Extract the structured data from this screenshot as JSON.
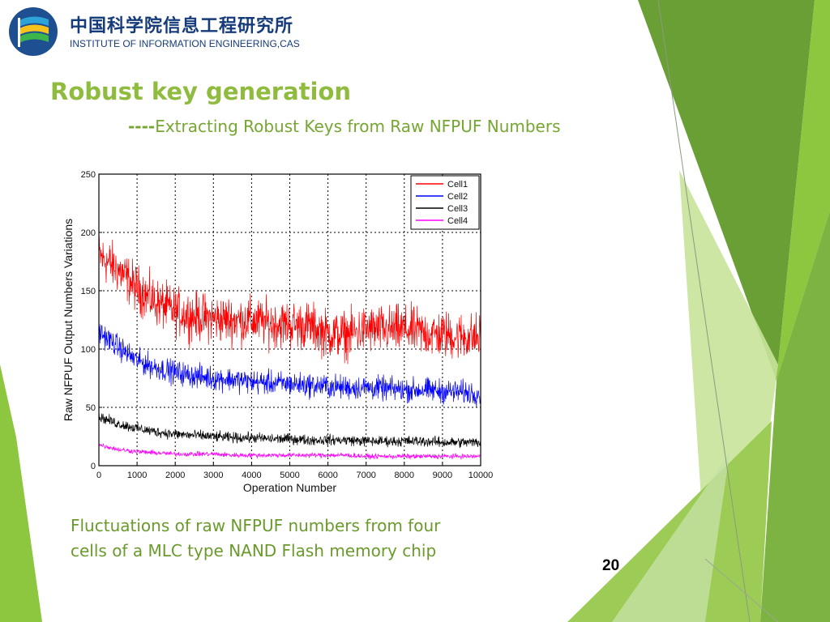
{
  "header": {
    "org_name_cn": "中国科学院信息工程研究所",
    "org_name_en": "INSTITUTE OF INFORMATION ENGINEERING,CAS",
    "logo_icon": "iie-cas-logo-icon"
  },
  "slide": {
    "title": "Robust key generation",
    "subtitle_dashes": "----",
    "subtitle": "Extracting Robust Keys from Raw NFPUF Numbers",
    "caption_line1": "Fluctuations of raw NFPUF numbers from four",
    "caption_line2": "cells of a MLC type NAND Flash memory chip",
    "page_number": "20"
  },
  "colors": {
    "title_green": "#8fbc3e",
    "accent_green": "#76a632",
    "logo_blue": "#163b7a"
  },
  "chart_data": {
    "type": "line",
    "title": "",
    "xlabel": "Operation Number",
    "ylabel": "Raw NFPUF Output Numbers Variations",
    "xlim": [
      0,
      10000
    ],
    "ylim": [
      0,
      250
    ],
    "x_ticks": [
      0,
      1000,
      2000,
      3000,
      4000,
      5000,
      6000,
      7000,
      8000,
      9000,
      10000
    ],
    "y_ticks": [
      0,
      50,
      100,
      150,
      200,
      250
    ],
    "grid": true,
    "legend_position": "top-right",
    "x": [
      0,
      500,
      1000,
      1500,
      2000,
      2500,
      3000,
      3500,
      4000,
      4500,
      5000,
      5500,
      6000,
      6500,
      7000,
      7500,
      8000,
      8500,
      9000,
      9500,
      10000
    ],
    "series": [
      {
        "name": "Cell1",
        "color": "#ff0000",
        "noise": 10,
        "values": [
          180,
          168,
          152,
          140,
          132,
          128,
          126,
          125,
          124,
          122,
          121,
          120,
          113,
          112,
          117,
          116,
          117,
          114,
          112,
          111,
          110
        ]
      },
      {
        "name": "Cell2",
        "color": "#0000ff",
        "noise": 5,
        "values": [
          115,
          102,
          90,
          84,
          80,
          77,
          75,
          74,
          72,
          71,
          70,
          69,
          68,
          67,
          67,
          66,
          65,
          65,
          64,
          63,
          62
        ]
      },
      {
        "name": "Cell3",
        "color": "#000000",
        "noise": 2.2,
        "values": [
          42,
          36,
          32,
          29,
          27,
          26,
          25,
          24,
          24,
          23,
          23,
          22,
          22,
          22,
          21,
          21,
          21,
          21,
          20,
          20,
          20
        ]
      },
      {
        "name": "Cell4",
        "color": "#ff00ff",
        "noise": 1,
        "values": [
          18,
          14,
          12,
          11,
          10,
          10,
          10,
          9,
          9,
          9,
          9,
          9,
          9,
          9,
          8,
          8,
          8,
          8,
          8,
          8,
          8
        ]
      }
    ]
  }
}
